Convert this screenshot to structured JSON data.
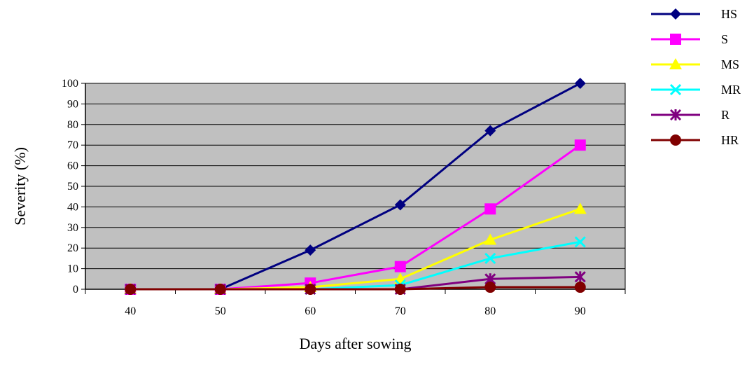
{
  "chart_data": {
    "type": "line",
    "title": "",
    "xlabel": "Days after sowing",
    "ylabel": "Severity  (%)",
    "x": [
      40,
      50,
      60,
      70,
      80,
      90
    ],
    "x_tick_labels": [
      "40",
      "50",
      "60",
      "70",
      "80",
      "90"
    ],
    "ylim": [
      0,
      100
    ],
    "y_tick_labels": [
      "0",
      "10",
      "20",
      "30",
      "40",
      "50",
      "60",
      "70",
      "80",
      "90",
      "100"
    ],
    "grid": "horizontal",
    "plot_background": "#c0c0c0",
    "legend_position": "right",
    "series": [
      {
        "name": "HS",
        "color": "#000080",
        "marker": "diamond",
        "values": [
          0,
          0,
          19,
          41,
          77,
          100
        ]
      },
      {
        "name": "S",
        "color": "#ff00ff",
        "marker": "square",
        "values": [
          0,
          0,
          3,
          11,
          39,
          70
        ]
      },
      {
        "name": "MS",
        "color": "#ffff00",
        "marker": "triangle",
        "values": [
          0,
          0,
          1,
          5,
          24,
          39
        ]
      },
      {
        "name": "MR",
        "color": "#00ffff",
        "marker": "x",
        "values": [
          0,
          0,
          0,
          2,
          15,
          23
        ]
      },
      {
        "name": "R",
        "color": "#800080",
        "marker": "star",
        "values": [
          0,
          0,
          0,
          0,
          5,
          6
        ]
      },
      {
        "name": "HR",
        "color": "#800000",
        "marker": "circle",
        "values": [
          0,
          0,
          0,
          0,
          1,
          1
        ]
      }
    ]
  }
}
